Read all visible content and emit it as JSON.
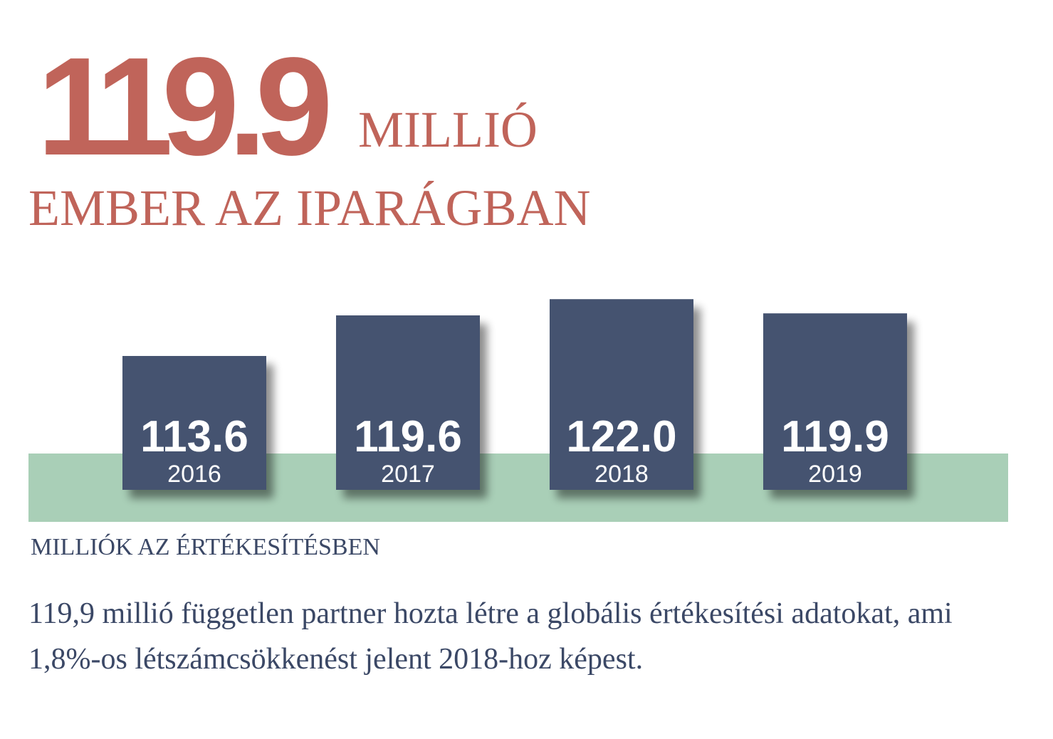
{
  "headline": {
    "number": "119.9",
    "unit": "MILLIÓ",
    "subtitle": "EMBER AZ IPARÁGBAN"
  },
  "colors": {
    "accent": "#c0645a",
    "bar": "#44526f",
    "band": "#a9cfb7",
    "text": "#3b4866"
  },
  "chart_data": {
    "type": "bar",
    "categories": [
      "2016",
      "2017",
      "2018",
      "2019"
    ],
    "values": [
      113.6,
      119.6,
      122.0,
      119.9
    ],
    "value_labels": [
      "113.6",
      "119.6",
      "122.0",
      "119.9"
    ],
    "caption": "MILLIÓK AZ ÉRTÉKESÍTÉSBEN",
    "grid": false,
    "legend": "none"
  },
  "description": "119,9 millió független partner hozta létre a globális értékesítési adatokat, ami 1,8%-os létszámcsökkenést jelent 2018-hoz képest."
}
